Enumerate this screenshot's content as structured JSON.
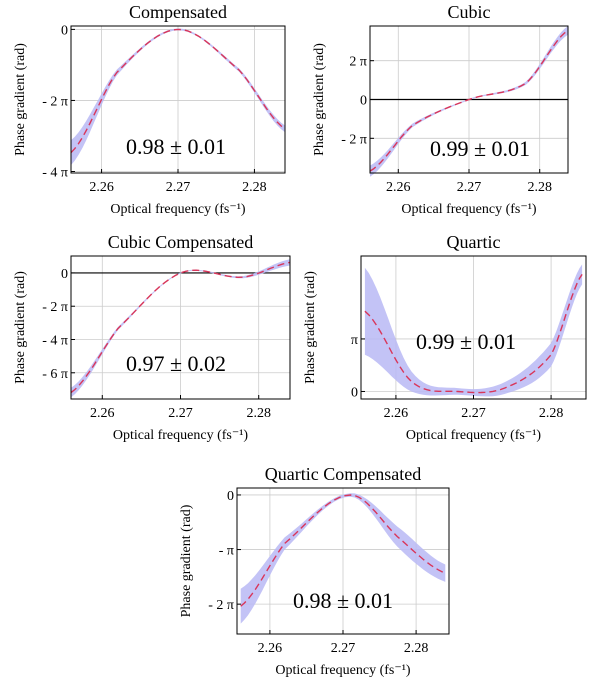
{
  "chart_data": [
    {
      "type": "line",
      "title": "Compensated",
      "xlabel": "Optical frequency (fs⁻¹)",
      "ylabel": "Phase gradient (rad)",
      "xlim": [
        2.256,
        2.284
      ],
      "ylim": [
        -12.7,
        0.3
      ],
      "xticks": [
        2.26,
        2.27,
        2.28
      ],
      "xtick_labels": [
        "2.26",
        "2.27",
        "2.28"
      ],
      "yticks": [
        0,
        -6.283,
        -12.566
      ],
      "ytick_labels": [
        "0",
        "- 2 π",
        "- 4 π"
      ],
      "zero_line": false,
      "annotation": "0.98 ± 0.01",
      "band": {
        "x": [
          2.256,
          2.262,
          2.27,
          2.278,
          2.284
        ],
        "y": [
          -10.9,
          -3.8,
          0.0,
          -3.6,
          -8.8
        ],
        "halfwidth": [
          1.1,
          0.25,
          0.08,
          0.15,
          0.3
        ]
      },
      "series": [
        {
          "x": [
            2.256,
            2.262,
            2.27,
            2.278,
            2.284
          ],
          "y": [
            -10.9,
            -3.8,
            0.0,
            -3.6,
            -8.8
          ]
        }
      ]
    },
    {
      "type": "line",
      "title": "Cubic",
      "xlabel": "Optical frequency (fs⁻¹)",
      "ylabel": "Phase gradient (rad)",
      "xlim": [
        2.256,
        2.284
      ],
      "ylim": [
        -11.9,
        11.9
      ],
      "xticks": [
        2.26,
        2.27,
        2.28
      ],
      "xtick_labels": [
        "2.26",
        "2.27",
        "2.28"
      ],
      "yticks": [
        6.283,
        0,
        -6.283
      ],
      "ytick_labels": [
        "2 π",
        "0",
        "- 2 π"
      ],
      "zero_line": true,
      "annotation": "0.99 ± 0.01",
      "band": {
        "x": [
          2.256,
          2.262,
          2.27,
          2.278,
          2.284
        ],
        "y": [
          -11.6,
          -4.2,
          0.0,
          2.6,
          11.2
        ],
        "halfwidth": [
          0.9,
          0.3,
          0.1,
          0.25,
          0.7
        ]
      },
      "series": [
        {
          "x": [
            2.256,
            2.262,
            2.27,
            2.278,
            2.284
          ],
          "y": [
            -11.6,
            -4.2,
            0.0,
            2.6,
            11.2
          ]
        }
      ]
    },
    {
      "type": "line",
      "title": "Cubic Compensated",
      "xlabel": "Optical frequency (fs⁻¹)",
      "ylabel": "Phase gradient (rad)",
      "xlim": [
        2.256,
        2.284
      ],
      "ylim": [
        -23.8,
        3.2
      ],
      "xticks": [
        2.26,
        2.27,
        2.28
      ],
      "xtick_labels": [
        "2.26",
        "2.27",
        "2.28"
      ],
      "yticks": [
        0,
        -6.283,
        -12.566,
        -18.85
      ],
      "ytick_labels": [
        "0",
        "- 2 π",
        "- 4 π",
        "- 6 π"
      ],
      "zero_line": true,
      "annotation": "0.97 ± 0.02",
      "band": {
        "x": [
          2.256,
          2.262,
          2.27,
          2.278,
          2.284
        ],
        "y": [
          -22.6,
          -10.5,
          0.0,
          -0.8,
          2.0
        ],
        "halfwidth": [
          0.9,
          0.3,
          0.1,
          0.2,
          0.6
        ]
      },
      "series": [
        {
          "x": [
            2.256,
            2.262,
            2.27,
            2.278,
            2.284
          ],
          "y": [
            -22.6,
            -10.5,
            0.0,
            -0.8,
            2.0
          ]
        }
      ]
    },
    {
      "type": "line",
      "title": "Quartic",
      "xlabel": "Optical frequency (fs⁻¹)",
      "ylabel": "Phase gradient (rad)",
      "xlim": [
        2.2555,
        2.2845
      ],
      "ylim": [
        -0.45,
        8.1
      ],
      "xticks": [
        2.26,
        2.27,
        2.28
      ],
      "xtick_labels": [
        "2.26",
        "2.27",
        "2.28"
      ],
      "yticks": [
        3.1416,
        0
      ],
      "ytick_labels": [
        "π",
        "0"
      ],
      "zero_line": false,
      "annotation": "0.99 ± 0.01",
      "band": {
        "x": [
          2.256,
          2.262,
          2.268,
          2.274,
          2.28,
          2.284
        ],
        "y": [
          4.8,
          0.6,
          0.0,
          0.2,
          2.2,
          7.0
        ],
        "halfwidth": [
          2.6,
          0.6,
          0.2,
          0.35,
          0.7,
          0.6
        ]
      },
      "series": [
        {
          "x": [
            2.256,
            2.262,
            2.268,
            2.274,
            2.28,
            2.284
          ],
          "y": [
            4.8,
            0.6,
            0.0,
            0.2,
            2.2,
            7.0
          ]
        }
      ]
    },
    {
      "type": "line",
      "title": "Quartic Compensated",
      "xlabel": "Optical frequency (fs⁻¹)",
      "ylabel": "Phase gradient (rad)",
      "xlim": [
        2.2555,
        2.2845
      ],
      "ylim": [
        -8.0,
        0.4
      ],
      "xticks": [
        2.26,
        2.27,
        2.28
      ],
      "xtick_labels": [
        "2.26",
        "2.27",
        "2.28"
      ],
      "yticks": [
        0,
        -3.1416,
        -6.283
      ],
      "ytick_labels": [
        "0",
        "- π",
        "- 2 π"
      ],
      "zero_line": false,
      "annotation": "0.98 ± 0.01",
      "band": {
        "x": [
          2.256,
          2.262,
          2.271,
          2.278,
          2.284
        ],
        "y": [
          -6.4,
          -2.8,
          0.0,
          -2.6,
          -4.5
        ],
        "halfwidth": [
          1.0,
          0.35,
          0.1,
          0.6,
          0.5
        ]
      },
      "series": [
        {
          "x": [
            2.256,
            2.262,
            2.271,
            2.278,
            2.284
          ],
          "y": [
            -6.4,
            -2.8,
            0.0,
            -2.6,
            -4.5
          ]
        }
      ]
    }
  ]
}
